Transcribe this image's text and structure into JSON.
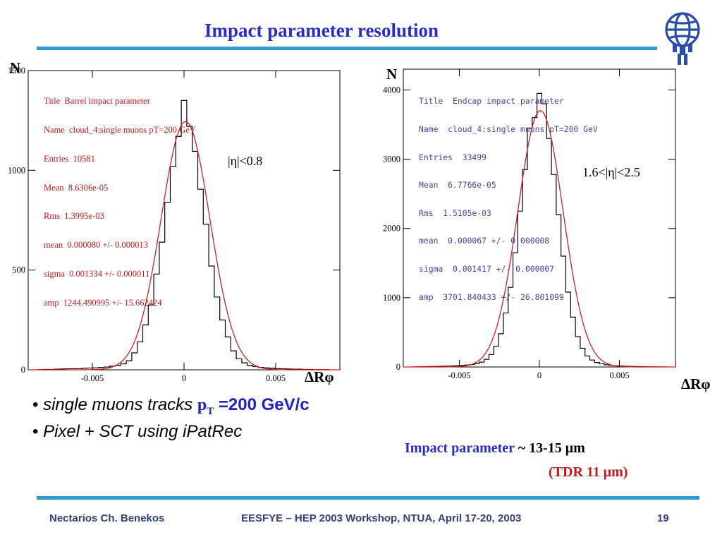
{
  "slide": {
    "title": "Impact parameter resolution",
    "bullets": [
      {
        "italic": "single muons tracks ",
        "pt": "p",
        "sub": "T",
        "rest": " =200 GeV/c"
      },
      {
        "italic": "Pixel + SCT using iPatRec"
      }
    ],
    "result_line1_a": "Impact parameter ",
    "result_line1_b": "~ 13-15 μm",
    "result_line2": "(TDR 11 μm)",
    "footer": {
      "author": "Nectarios Ch. Benekos",
      "event": "EESFYE – HEP 2003  Workshop, NTUA, April 17-20, 2003",
      "page": "19"
    },
    "colors": {
      "title": "#2b2bc8",
      "rule": "#2f9ad6",
      "fit": "#d42020",
      "stats_left": "#c8161d",
      "stats_right": "#4a43a6"
    },
    "logo_icon": "atlas-globe-icon"
  },
  "chart_data": [
    {
      "type": "bar",
      "ylabel": "N",
      "xlabel": "ΔRφ",
      "region_label": "|η|<0.8",
      "xlim": [
        -0.0085,
        0.0085
      ],
      "ylim": [
        0,
        1500
      ],
      "xticks": [
        -0.005,
        0,
        0.005
      ],
      "xtick_labels": [
        "-0.005",
        "0",
        "0.005"
      ],
      "yticks": [
        0,
        500,
        1000,
        1500
      ],
      "ytick_labels": [
        "0",
        "500",
        "1000",
        "1500"
      ],
      "stats": [
        "Title  Barrel impact parameter",
        "Name  cloud_4:single muons pT=200 GeV",
        "Entries  10581",
        "Mean  8.6306e-05",
        "Rms  1.3995e-03",
        "mean  0.000080 +/- 0.000013",
        "sigma  0.001334 +/- 0.000011",
        "amp  1244.490995 +/- 15.662424"
      ],
      "fit": {
        "function": "gaussian",
        "mean": 8e-05,
        "sigma": 0.001334,
        "amp": 1244.490995
      },
      "bin_width": 0.0003,
      "series": [
        {
          "bin_centers": [
            -0.0078,
            -0.0075,
            -0.0072,
            -0.0069,
            -0.0066,
            -0.0063,
            -0.006,
            -0.0057,
            -0.0054,
            -0.0051,
            -0.0048,
            -0.0045,
            -0.0042,
            -0.0039,
            -0.0036,
            -0.0033,
            -0.003,
            -0.0027,
            -0.0024,
            -0.0021,
            -0.0018,
            -0.0015,
            -0.0012,
            -0.0009,
            -0.0006,
            -0.0003,
            0,
            0.0003,
            0.0006,
            0.0009,
            0.0012,
            0.0015,
            0.0018,
            0.0021,
            0.0024,
            0.0027,
            0.003,
            0.0033,
            0.0036,
            0.0039,
            0.0042,
            0.0045,
            0.0048,
            0.0051,
            0.0054,
            0.0057,
            0.006,
            0.0063,
            0.0066,
            0.0069,
            0.0072,
            0.0075,
            0.0078
          ],
          "counts": [
            1,
            2,
            2,
            3,
            4,
            5,
            5,
            6,
            8,
            9,
            10,
            12,
            14,
            18,
            22,
            30,
            45,
            85,
            140,
            225,
            325,
            480,
            640,
            840,
            1020,
            1170,
            1350,
            1220,
            1095,
            905,
            730,
            520,
            365,
            250,
            165,
            95,
            55,
            35,
            22,
            16,
            12,
            10,
            8,
            6,
            5,
            4,
            3,
            3,
            2,
            2,
            1,
            1,
            1
          ]
        }
      ]
    },
    {
      "type": "bar",
      "ylabel": "N",
      "xlabel": "ΔRφ",
      "region_label": "1.6<|η|<2.5",
      "xlim": [
        -0.0085,
        0.0085
      ],
      "ylim": [
        0,
        4300
      ],
      "xticks": [
        -0.005,
        0,
        0.005
      ],
      "xtick_labels": [
        "-0.005",
        "0",
        "0.005"
      ],
      "yticks": [
        0,
        1000,
        2000,
        3000,
        4000
      ],
      "ytick_labels": [
        "0",
        "1000",
        "2000",
        "3000",
        "4000"
      ],
      "stats": [
        "Title  Endcap impact parameter",
        "Name  cloud_4:single muons pT=200 GeV",
        "Entries  33499",
        "Mean  6.7766e-05",
        "Rms  1.5105e-03",
        "mean  0.000067 +/- 0.000008",
        "sigma  0.001417 +/- 0.000007",
        "amp  3701.840433 +/- 26.801099"
      ],
      "fit": {
        "function": "gaussian",
        "mean": 6.7e-05,
        "sigma": 0.001417,
        "amp": 3701.840433
      },
      "bin_width": 0.0003,
      "series": [
        {
          "bin_centers": [
            -0.0078,
            -0.0075,
            -0.0072,
            -0.0069,
            -0.0066,
            -0.0063,
            -0.006,
            -0.0057,
            -0.0054,
            -0.0051,
            -0.0048,
            -0.0045,
            -0.0042,
            -0.0039,
            -0.0036,
            -0.0033,
            -0.003,
            -0.0027,
            -0.0024,
            -0.0021,
            -0.0018,
            -0.0015,
            -0.0012,
            -0.0009,
            -0.0006,
            -0.0003,
            0,
            0.0003,
            0.0006,
            0.0009,
            0.0012,
            0.0015,
            0.0018,
            0.0021,
            0.0024,
            0.0027,
            0.003,
            0.0033,
            0.0036,
            0.0039,
            0.0042,
            0.0045,
            0.0048,
            0.0051,
            0.0054,
            0.0057,
            0.006,
            0.0063,
            0.0066,
            0.0069,
            0.0072,
            0.0075,
            0.0078
          ],
          "counts": [
            2,
            3,
            4,
            5,
            6,
            8,
            10,
            12,
            15,
            18,
            22,
            28,
            35,
            48,
            70,
            110,
            180,
            300,
            480,
            780,
            1150,
            1650,
            2250,
            2850,
            3450,
            3600,
            3950,
            3800,
            3300,
            2780,
            2200,
            1600,
            1080,
            720,
            440,
            270,
            160,
            100,
            65,
            45,
            32,
            24,
            18,
            14,
            10,
            8,
            6,
            5,
            4,
            3,
            3,
            2,
            2
          ]
        }
      ]
    }
  ]
}
